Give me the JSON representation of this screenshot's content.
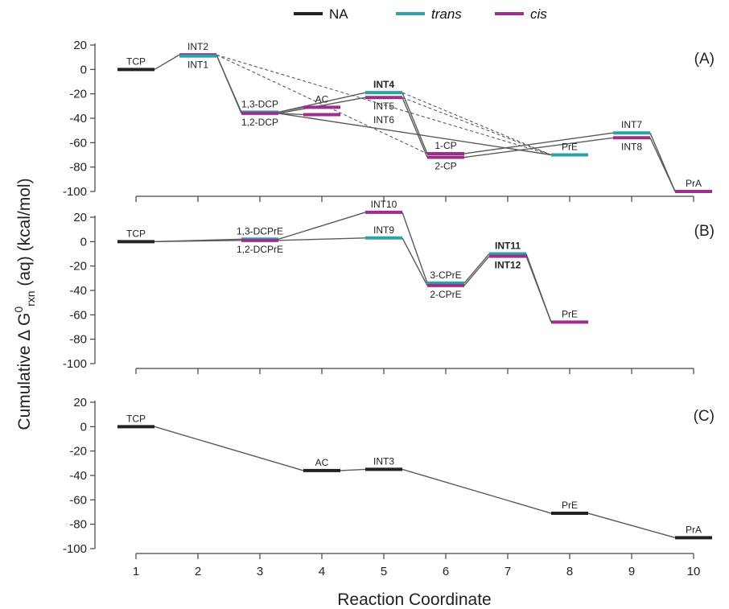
{
  "colors": {
    "NA": "#222222",
    "trans": "#2aa3a9",
    "cis": "#9c2f8c",
    "connector": "#5a5a5a"
  },
  "legend": [
    {
      "key": "NA",
      "label": "NA",
      "italic": false
    },
    {
      "key": "trans",
      "label": "trans",
      "italic": true
    },
    {
      "key": "cis",
      "label": "cis",
      "italic": true
    }
  ],
  "chart_data": {
    "type": "line",
    "xlabel": "Reaction Coordinate",
    "ylabel": "Cumulative Δ G0rxn (aq) (kcal/mol)",
    "ylabel_main": "Cumulative Δ G",
    "ylabel_sup": "0",
    "ylabel_sub": "rxn",
    "ylabel_tail": " (aq) (kcal/mol)",
    "x_ticks": [
      1,
      2,
      3,
      4,
      5,
      6,
      7,
      8,
      9,
      10
    ],
    "y_ticks": [
      20,
      0,
      -20,
      -40,
      -60,
      -80,
      -100
    ],
    "xlim": [
      0.5,
      10.5
    ],
    "ylim": [
      -100,
      20
    ],
    "grid": false,
    "legend_position": "top",
    "panels": [
      {
        "tag": "(A)",
        "levels": [
          {
            "id": "TCP",
            "x": 1,
            "y": 0,
            "variant": "NA",
            "label": "TCP",
            "label_pos": "above"
          },
          {
            "id": "INT2",
            "x": 2,
            "y": 12,
            "variant": "cis",
            "label": "INT2",
            "label_pos": "above"
          },
          {
            "id": "INT1",
            "x": 2,
            "y": 11,
            "variant": "trans",
            "label": "INT1",
            "label_pos": "below"
          },
          {
            "id": "13DCP",
            "x": 3,
            "y": -35,
            "variant": "trans",
            "label": "1,3-DCP",
            "label_pos": "above"
          },
          {
            "id": "12DCP",
            "x": 3,
            "y": -36,
            "variant": "cis",
            "label": "1,2-DCP",
            "label_pos": "below"
          },
          {
            "id": "ACa",
            "x": 4,
            "y": -31,
            "variant": "cis",
            "label": "AC",
            "label_pos": "above"
          },
          {
            "id": "ACb",
            "x": 4,
            "y": -37,
            "variant": "cis",
            "label": "",
            "label_pos": "none"
          },
          {
            "id": "INT4",
            "x": 5,
            "y": -19,
            "variant": "trans",
            "label": "INT4",
            "label_pos": "above",
            "bold": true
          },
          {
            "id": "INT5",
            "x": 5,
            "y": -23,
            "variant": "cis",
            "label": "INT5",
            "label_pos": "below"
          },
          {
            "id": "1CP",
            "x": 6,
            "y": -69,
            "variant": "cis",
            "label": "1-CP",
            "label_pos": "above"
          },
          {
            "id": "2CP",
            "x": 6,
            "y": -72,
            "variant": "cis",
            "label": "2-CP",
            "label_pos": "below"
          },
          {
            "id": "PrE",
            "x": 8,
            "y": -70,
            "variant": "trans",
            "label": "PrE",
            "label_pos": "above"
          },
          {
            "id": "INT7",
            "x": 9,
            "y": -52,
            "variant": "trans",
            "label": "INT7",
            "label_pos": "above"
          },
          {
            "id": "INT8",
            "x": 9,
            "y": -56,
            "variant": "cis",
            "label": "INT8",
            "label_pos": "below"
          },
          {
            "id": "PrA",
            "x": 10,
            "y": -100,
            "variant": "cis",
            "label": "PrA",
            "label_pos": "above"
          }
        ],
        "extra_labels": [
          {
            "text": "INT6",
            "x": 5,
            "y": -38
          }
        ],
        "connections": [
          {
            "from": "TCP",
            "to": "INT2",
            "style": "solid"
          },
          {
            "from": "INT2",
            "to": "13DCP",
            "style": "solid"
          },
          {
            "from": "INT2",
            "to": "12DCP",
            "style": "solid"
          },
          {
            "from": "INT2",
            "to": "PrE",
            "style": "dashed"
          },
          {
            "from": "INT2",
            "to": "1CP",
            "style": "dashed"
          },
          {
            "from": "13DCP",
            "to": "ACa",
            "style": "solid"
          },
          {
            "from": "12DCP",
            "to": "ACb",
            "style": "solid"
          },
          {
            "from": "13DCP",
            "to": "INT4",
            "style": "solid"
          },
          {
            "from": "12DCP",
            "to": "INT5",
            "style": "solid"
          },
          {
            "from": "12DCP",
            "to": "PrE",
            "style": "solid"
          },
          {
            "from": "INT4",
            "to": "1CP",
            "style": "solid"
          },
          {
            "from": "INT5",
            "to": "2CP",
            "style": "solid"
          },
          {
            "from": "INT4",
            "to": "PrE",
            "style": "dashed"
          },
          {
            "from": "INT5",
            "to": "PrE",
            "style": "dashed"
          },
          {
            "from": "1CP",
            "to": "INT7",
            "style": "solid"
          },
          {
            "from": "2CP",
            "to": "INT8",
            "style": "solid"
          },
          {
            "from": "INT7",
            "to": "PrA",
            "style": "solid"
          },
          {
            "from": "INT8",
            "to": "PrA",
            "style": "solid"
          }
        ]
      },
      {
        "tag": "(B)",
        "levels": [
          {
            "id": "TCP",
            "x": 1,
            "y": 0,
            "variant": "NA",
            "label": "TCP",
            "label_pos": "above"
          },
          {
            "id": "13DCPrE",
            "x": 3,
            "y": 2,
            "variant": "trans",
            "label": "1,3-DCPrE",
            "label_pos": "above"
          },
          {
            "id": "12DCPrE",
            "x": 3,
            "y": 1,
            "variant": "cis",
            "label": "1,2-DCPrE",
            "label_pos": "below"
          },
          {
            "id": "INT10",
            "x": 5,
            "y": 24,
            "variant": "cis",
            "label": "INT10",
            "label_pos": "above"
          },
          {
            "id": "INT9",
            "x": 5,
            "y": 3,
            "variant": "trans",
            "label": "INT9",
            "label_pos": "above"
          },
          {
            "id": "3CPrE",
            "x": 6,
            "y": -34,
            "variant": "trans",
            "label": "3-CPrE",
            "label_pos": "above"
          },
          {
            "id": "2CPrE",
            "x": 6,
            "y": -36,
            "variant": "cis",
            "label": "2-CPrE",
            "label_pos": "below"
          },
          {
            "id": "INT11",
            "x": 7,
            "y": -10,
            "variant": "trans",
            "label": "INT11",
            "label_pos": "above",
            "bold": true
          },
          {
            "id": "INT12",
            "x": 7,
            "y": -12,
            "variant": "cis",
            "label": "INT12",
            "label_pos": "below",
            "bold": true
          },
          {
            "id": "PrE",
            "x": 8,
            "y": -66,
            "variant": "cis",
            "label": "PrE",
            "label_pos": "above"
          }
        ],
        "extra_labels": [],
        "connections": [
          {
            "from": "TCP",
            "to": "13DCPrE",
            "style": "solid"
          },
          {
            "from": "TCP",
            "to": "12DCPrE",
            "style": "solid"
          },
          {
            "from": "13DCPrE",
            "to": "INT10",
            "style": "solid"
          },
          {
            "from": "12DCPrE",
            "to": "INT9",
            "style": "solid"
          },
          {
            "from": "INT10",
            "to": "3CPrE",
            "style": "solid"
          },
          {
            "from": "INT9",
            "to": "2CPrE",
            "style": "solid"
          },
          {
            "from": "3CPrE",
            "to": "INT11",
            "style": "solid"
          },
          {
            "from": "2CPrE",
            "to": "INT12",
            "style": "solid"
          },
          {
            "from": "INT11",
            "to": "PrE",
            "style": "solid"
          },
          {
            "from": "INT12",
            "to": "PrE",
            "style": "solid"
          }
        ]
      },
      {
        "tag": "(C)",
        "levels": [
          {
            "id": "TCP",
            "x": 1,
            "y": 0,
            "variant": "NA",
            "label": "TCP",
            "label_pos": "above"
          },
          {
            "id": "AC",
            "x": 4,
            "y": -36,
            "variant": "NA",
            "label": "AC",
            "label_pos": "above"
          },
          {
            "id": "INT3",
            "x": 5,
            "y": -35,
            "variant": "NA",
            "label": "INT3",
            "label_pos": "above"
          },
          {
            "id": "PrE",
            "x": 8,
            "y": -71,
            "variant": "NA",
            "label": "PrE",
            "label_pos": "above"
          },
          {
            "id": "PrA",
            "x": 10,
            "y": -91,
            "variant": "NA",
            "label": "PrA",
            "label_pos": "above"
          }
        ],
        "extra_labels": [],
        "connections": [
          {
            "from": "TCP",
            "to": "AC",
            "style": "solid"
          },
          {
            "from": "AC",
            "to": "INT3",
            "style": "solid"
          },
          {
            "from": "INT3",
            "to": "PrE",
            "style": "solid"
          },
          {
            "from": "PrE",
            "to": "PrA",
            "style": "solid"
          }
        ]
      }
    ]
  }
}
